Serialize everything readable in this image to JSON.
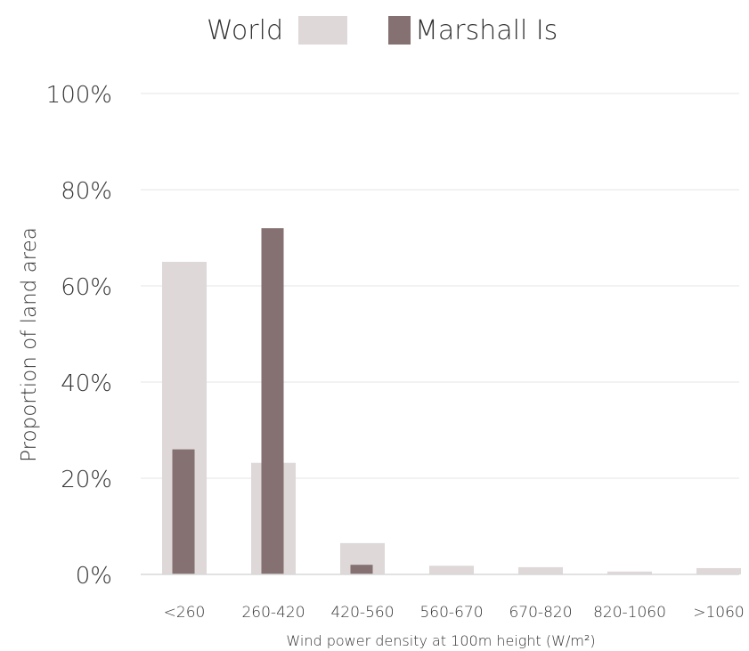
{
  "chart_data": {
    "type": "bar",
    "title": "",
    "categories": [
      "<260",
      "260-420",
      "420-560",
      "560-670",
      "670-820",
      "820-1060",
      ">1060"
    ],
    "series": [
      {
        "name": "World",
        "values": [
          65,
          23.2,
          6.5,
          1.8,
          1.5,
          0.6,
          1.3
        ],
        "color": "#ded8d8"
      },
      {
        "name": "Marshall Is",
        "values": [
          26,
          72,
          2,
          0,
          0,
          0,
          0
        ],
        "color": "#857171"
      }
    ],
    "ylim": [
      0,
      100
    ],
    "yticks": [
      0,
      20,
      40,
      60,
      80,
      100
    ],
    "ytick_labels": [
      "0%",
      "20%",
      "40%",
      "60%",
      "80%",
      "100%"
    ],
    "ylabel": "Proportion of land area",
    "xlabel": "Wind power density at 100m height (W/m²)",
    "legend_position": "top-center",
    "grid": true
  }
}
